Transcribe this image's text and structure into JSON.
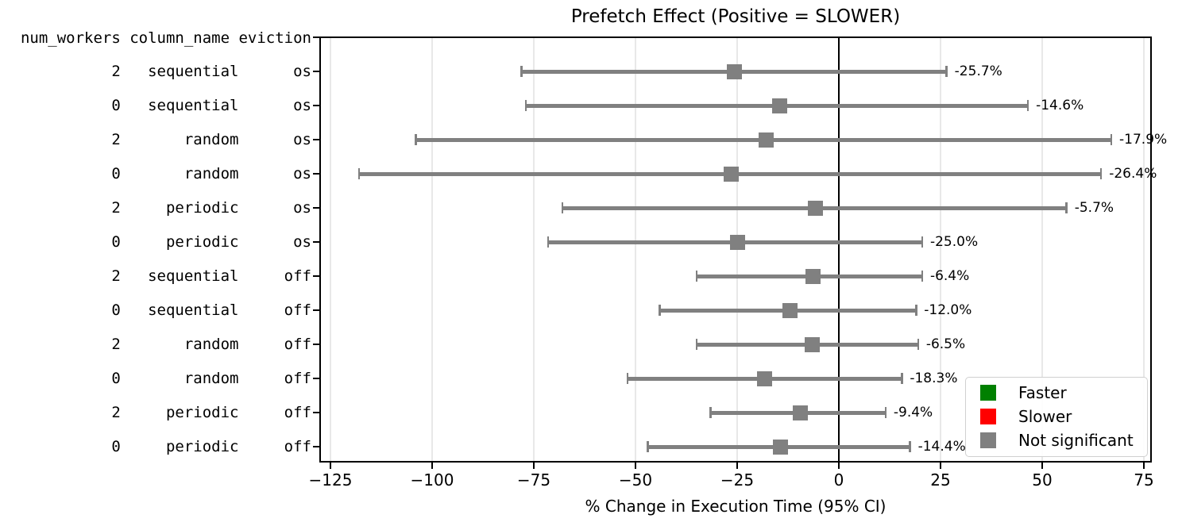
{
  "title": "Prefetch Effect (Positive = SLOWER)",
  "xlabel": "% Change in Execution Time (95% CI)",
  "y_header": "num_workers column_name eviction",
  "legend": {
    "position": "lower right",
    "items": [
      {
        "label": "Faster",
        "color": "#008000"
      },
      {
        "label": "Slower",
        "color": "#ff0000"
      },
      {
        "label": "Not significant",
        "color": "#808080"
      }
    ]
  },
  "chart_data": {
    "type": "errorbar",
    "orientation": "horizontal",
    "title": "Prefetch Effect (Positive = SLOWER)",
    "xlabel": "% Change in Execution Time (95% CI)",
    "xlim": [
      -127.3,
      77.3
    ],
    "x_ticks": [
      -125,
      -100,
      -75,
      -50,
      -25,
      0,
      25,
      50,
      75
    ],
    "grid": true,
    "zero_line": 0,
    "marker_shape": "square",
    "columns": [
      "num_workers",
      "column_name",
      "eviction"
    ],
    "rows": [
      {
        "num_workers": "2",
        "column_name": "sequential",
        "eviction": "os",
        "mean_pct": -25.7,
        "ci_low": -78,
        "ci_high": 26.5,
        "label": "-25.7%",
        "status": "Not significant",
        "color": "#808080"
      },
      {
        "num_workers": "0",
        "column_name": "sequential",
        "eviction": "os",
        "mean_pct": -14.6,
        "ci_low": -77,
        "ci_high": 46.5,
        "label": "-14.6%",
        "status": "Not significant",
        "color": "#808080"
      },
      {
        "num_workers": "2",
        "column_name": "random",
        "eviction": "os",
        "mean_pct": -17.9,
        "ci_low": -104,
        "ci_high": 67,
        "label": "-17.9%",
        "status": "Not significant",
        "color": "#808080"
      },
      {
        "num_workers": "0",
        "column_name": "random",
        "eviction": "os",
        "mean_pct": -26.4,
        "ci_low": -118,
        "ci_high": 64.5,
        "label": "-26.4%",
        "status": "Not significant",
        "color": "#808080"
      },
      {
        "num_workers": "2",
        "column_name": "periodic",
        "eviction": "os",
        "mean_pct": -5.7,
        "ci_low": -68,
        "ci_high": 56,
        "label": "-5.7%",
        "status": "Not significant",
        "color": "#808080"
      },
      {
        "num_workers": "0",
        "column_name": "periodic",
        "eviction": "os",
        "mean_pct": -25.0,
        "ci_low": -71.5,
        "ci_high": 20.5,
        "label": "-25.0%",
        "status": "Not significant",
        "color": "#808080"
      },
      {
        "num_workers": "2",
        "column_name": "sequential",
        "eviction": "off",
        "mean_pct": -6.4,
        "ci_low": -35,
        "ci_high": 20.5,
        "label": "-6.4%",
        "status": "Not significant",
        "color": "#808080"
      },
      {
        "num_workers": "0",
        "column_name": "sequential",
        "eviction": "off",
        "mean_pct": -12.0,
        "ci_low": -44,
        "ci_high": 19,
        "label": "-12.0%",
        "status": "Not significant",
        "color": "#808080"
      },
      {
        "num_workers": "2",
        "column_name": "random",
        "eviction": "off",
        "mean_pct": -6.5,
        "ci_low": -35,
        "ci_high": 19.5,
        "label": "-6.5%",
        "status": "Not significant",
        "color": "#808080"
      },
      {
        "num_workers": "0",
        "column_name": "random",
        "eviction": "off",
        "mean_pct": -18.3,
        "ci_low": -52,
        "ci_high": 15.5,
        "label": "-18.3%",
        "status": "Not significant",
        "color": "#808080"
      },
      {
        "num_workers": "2",
        "column_name": "periodic",
        "eviction": "off",
        "mean_pct": -9.4,
        "ci_low": -31.5,
        "ci_high": 11.5,
        "label": "-9.4%",
        "status": "Not significant",
        "color": "#808080"
      },
      {
        "num_workers": "0",
        "column_name": "periodic",
        "eviction": "off",
        "mean_pct": -14.4,
        "ci_low": -47,
        "ci_high": 17.5,
        "label": "-14.4%",
        "status": "Not significant",
        "color": "#808080"
      }
    ],
    "legend_entries": [
      {
        "label": "Faster",
        "color": "#008000"
      },
      {
        "label": "Slower",
        "color": "#ff0000"
      },
      {
        "label": "Not significant",
        "color": "#808080"
      }
    ]
  }
}
